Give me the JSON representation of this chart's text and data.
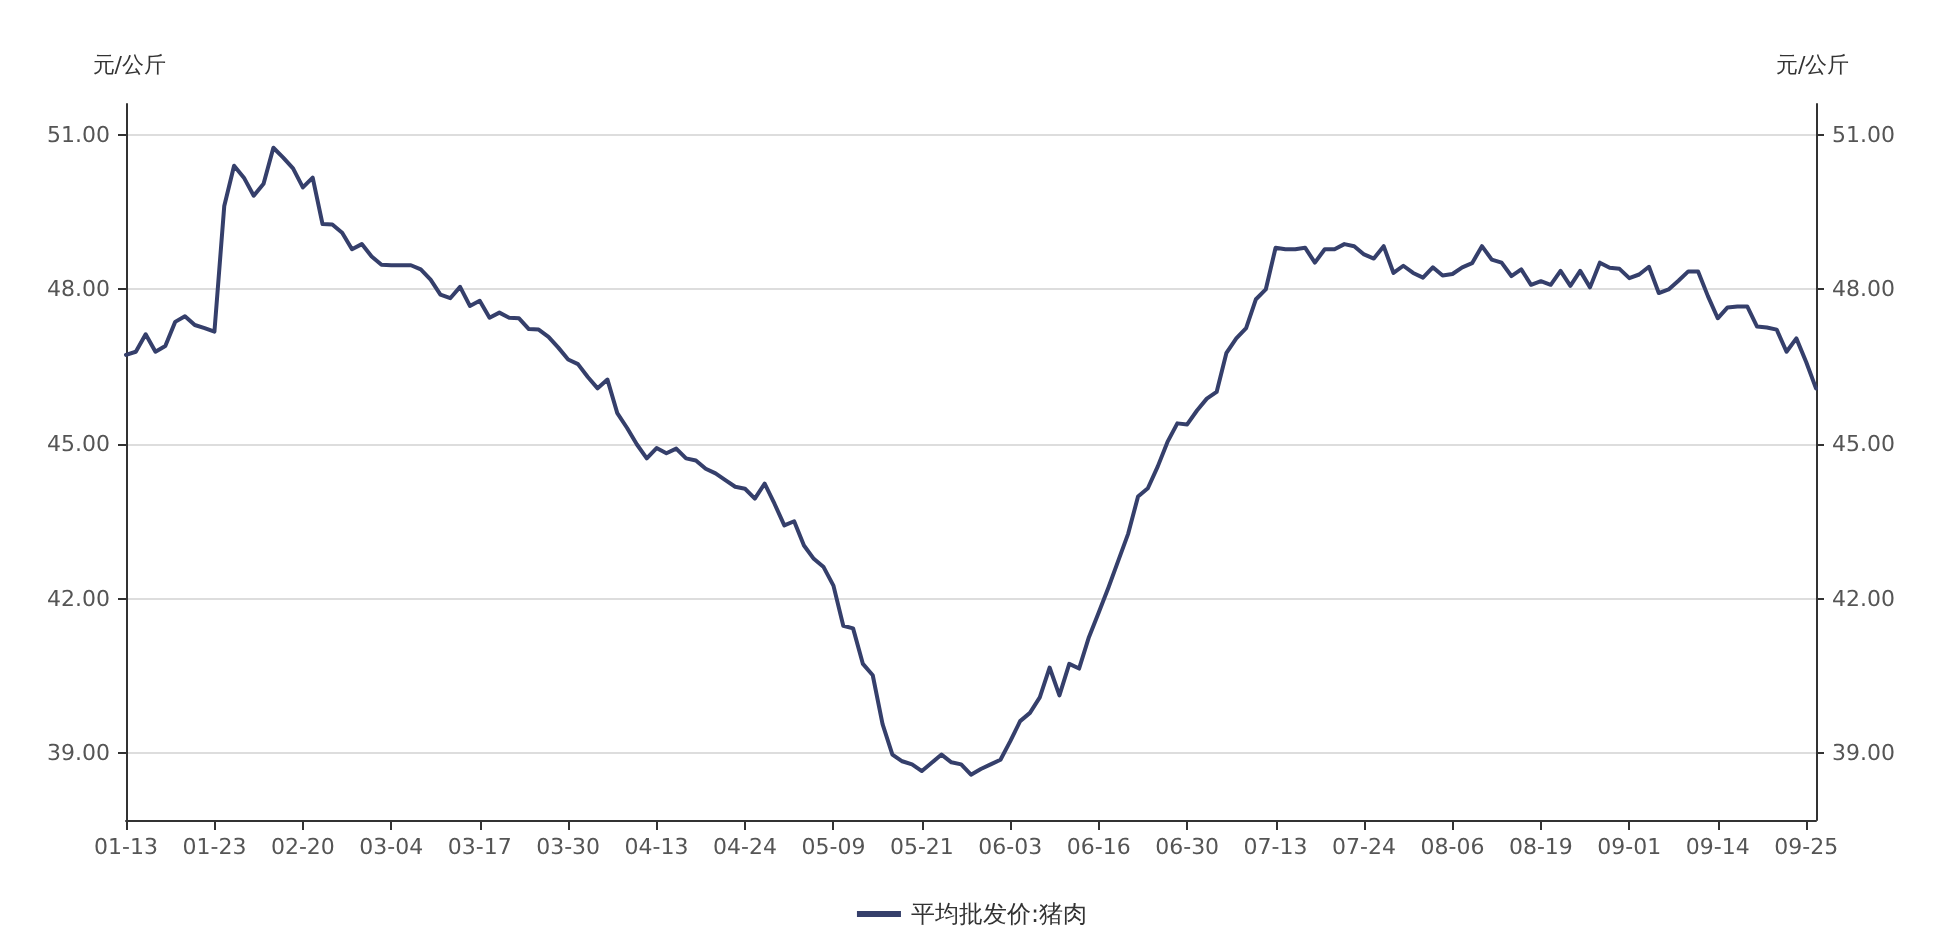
{
  "chart_data": {
    "type": "line",
    "ylabel": "元/公斤",
    "y2label": "元/公斤",
    "categories": [
      "01-13",
      null,
      null,
      null,
      null,
      null,
      null,
      null,
      null,
      "01-23",
      null,
      null,
      null,
      null,
      null,
      null,
      null,
      null,
      "02-20",
      null,
      null,
      null,
      null,
      null,
      null,
      null,
      null,
      "03-04",
      null,
      null,
      null,
      null,
      null,
      null,
      null,
      null,
      "03-17",
      null,
      null,
      null,
      null,
      null,
      null,
      null,
      null,
      "03-30",
      null,
      null,
      null,
      null,
      null,
      null,
      null,
      null,
      "04-13",
      null,
      null,
      null,
      null,
      null,
      null,
      null,
      null,
      "04-24",
      null,
      null,
      null,
      null,
      null,
      null,
      null,
      null,
      "05-09",
      null,
      null,
      null,
      null,
      null,
      null,
      null,
      null,
      "05-21",
      null,
      null,
      null,
      null,
      null,
      null,
      null,
      null,
      "06-03",
      null,
      null,
      null,
      null,
      null,
      null,
      null,
      null,
      "06-16",
      null,
      null,
      null,
      null,
      null,
      null,
      null,
      null,
      "06-30",
      null,
      null,
      null,
      null,
      null,
      null,
      null,
      null,
      "07-13",
      null,
      null,
      null,
      null,
      null,
      null,
      null,
      null,
      "07-24",
      null,
      null,
      null,
      null,
      null,
      null,
      null,
      null,
      "08-06",
      null,
      null,
      null,
      null,
      null,
      null,
      null,
      null,
      "08-19",
      null,
      null,
      null,
      null,
      null,
      null,
      null,
      null,
      "09-01",
      null,
      null,
      null,
      null,
      null,
      null,
      null,
      null,
      "09-14",
      null,
      null,
      null,
      null,
      null,
      null,
      null,
      null,
      "09-25",
      null
    ],
    "series": [
      {
        "name": "平均批发价:猪肉",
        "color": "#353f6b",
        "values": [
          46.73,
          46.79,
          47.13,
          46.79,
          46.9,
          47.37,
          47.48,
          47.31,
          47.25,
          47.18,
          49.62,
          50.4,
          50.17,
          49.82,
          50.05,
          50.75,
          50.56,
          50.35,
          49.98,
          50.17,
          49.27,
          49.26,
          49.1,
          48.78,
          48.88,
          48.64,
          48.48,
          48.47,
          48.47,
          48.47,
          48.39,
          48.19,
          47.9,
          47.83,
          48.05,
          47.68,
          47.78,
          47.45,
          47.55,
          47.45,
          47.44,
          47.23,
          47.22,
          47.08,
          46.87,
          46.64,
          46.55,
          46.3,
          46.08,
          46.25,
          45.6,
          45.31,
          44.99,
          44.72,
          44.92,
          44.82,
          44.91,
          44.72,
          44.68,
          44.52,
          44.43,
          44.3,
          44.17,
          44.13,
          43.94,
          44.23,
          43.84,
          43.42,
          43.5,
          43.03,
          42.77,
          42.61,
          42.25,
          41.47,
          41.42,
          40.73,
          40.51,
          39.56,
          38.97,
          38.84,
          38.78,
          38.65,
          38.81,
          38.97,
          38.82,
          38.78,
          38.58,
          38.69,
          38.78,
          38.87,
          39.23,
          39.62,
          39.78,
          40.08,
          40.66,
          40.12,
          40.73,
          40.64,
          41.25,
          41.73,
          42.22,
          42.74,
          43.26,
          43.98,
          44.14,
          44.56,
          45.04,
          45.4,
          45.38,
          45.65,
          45.88,
          46.01,
          46.77,
          47.05,
          47.25,
          47.81,
          48.0,
          48.81,
          48.78,
          48.78,
          48.81,
          48.52,
          48.78,
          48.78,
          48.88,
          48.84,
          48.68,
          48.6,
          48.84,
          48.32,
          48.46,
          48.32,
          48.23,
          48.43,
          48.27,
          48.3,
          48.43,
          48.51,
          48.84,
          48.58,
          48.52,
          48.26,
          48.39,
          48.09,
          48.16,
          48.09,
          48.36,
          48.07,
          48.36,
          48.04,
          48.52,
          48.42,
          48.4,
          48.22,
          48.29,
          48.44,
          47.93,
          48.0,
          48.17,
          48.35,
          48.35,
          47.87,
          47.44,
          47.65,
          47.67,
          47.67,
          47.28,
          47.26,
          47.22,
          46.79,
          47.05,
          46.59,
          46.08
        ]
      }
    ],
    "ylim": [
      37.7,
      51.6
    ],
    "yticks": [
      {
        "value": 39,
        "label": "39.00"
      },
      {
        "value": 42,
        "label": "42.00"
      },
      {
        "value": 45,
        "label": "45.00"
      },
      {
        "value": 48,
        "label": "48.00"
      },
      {
        "value": 51,
        "label": "51.00"
      }
    ],
    "y2lim": [
      37.7,
      51.6
    ],
    "y2ticks": [
      {
        "value": 39,
        "label": "39.00"
      },
      {
        "value": 42,
        "label": "42.00"
      },
      {
        "value": 45,
        "label": "45.00"
      },
      {
        "value": 48,
        "label": "48.00"
      },
      {
        "value": 51,
        "label": "51.00"
      }
    ],
    "grid": "y",
    "legend": "bottom",
    "marker": "none",
    "line_style": "solid"
  }
}
